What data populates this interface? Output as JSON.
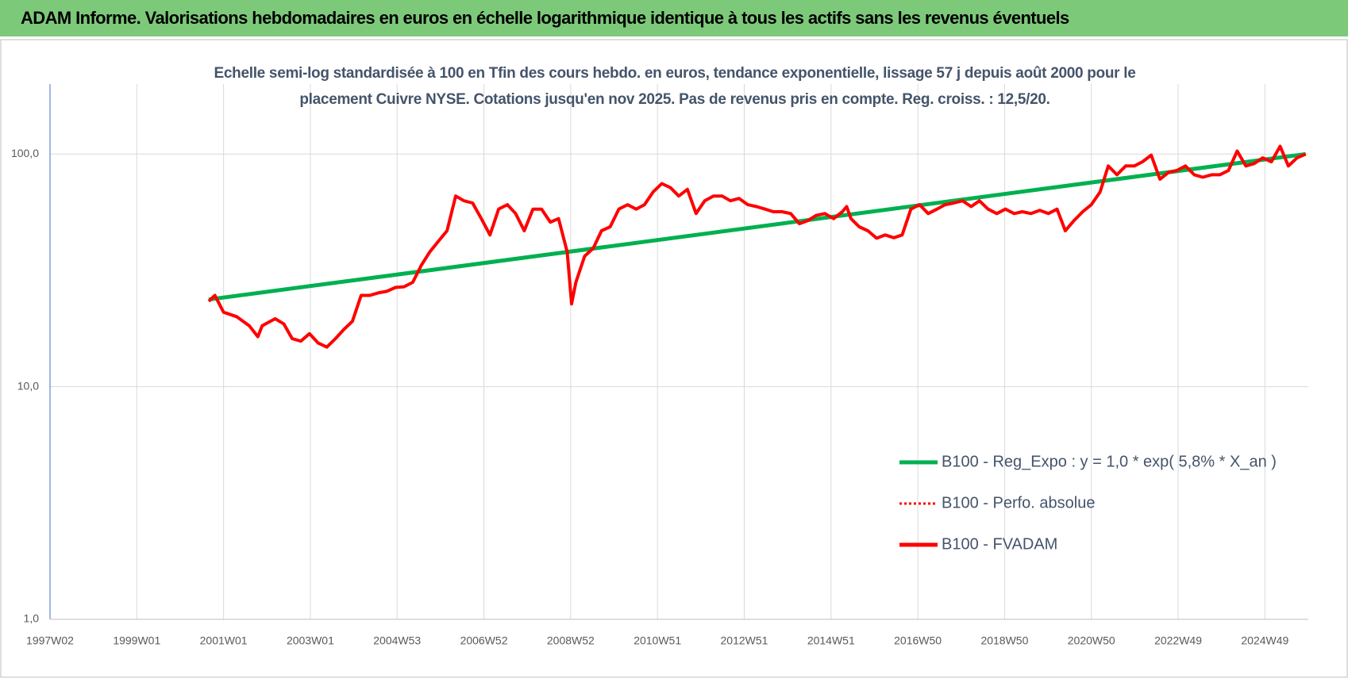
{
  "chart_data": {
    "type": "line",
    "title": "ADAM Informe. Valorisations hebdomadaires en euros en échelle logarithmique identique à tous les actifs sans les revenus éventuels",
    "subtitle": "Echelle semi-log standardisée à 100 en Tfin des cours hebdo. en euros, tendance exponentielle, lissage 57 j depuis août 2000 pour le placement Cuivre NYSE.  Cotations jusqu'en nov 2025. Pas de revenus pris en compte. Reg. croiss. : 12,5/20.",
    "log_scale": true,
    "grid": true,
    "legend": "lower right",
    "xlim": [
      1997,
      2026
    ],
    "xticks": [
      {
        "value": 1997,
        "label": "1997W02"
      },
      {
        "value": 1999,
        "label": "1999W01"
      },
      {
        "value": 2001,
        "label": "2001W01"
      },
      {
        "value": 2003,
        "label": "2003W01"
      },
      {
        "value": 2005,
        "label": "2004W53"
      },
      {
        "value": 2007,
        "label": "2006W52"
      },
      {
        "value": 2009,
        "label": "2008W52"
      },
      {
        "value": 2011,
        "label": "2010W51"
      },
      {
        "value": 2013,
        "label": "2012W51"
      },
      {
        "value": 2015,
        "label": "2014W51"
      },
      {
        "value": 2017,
        "label": "2016W50"
      },
      {
        "value": 2019,
        "label": "2018W50"
      },
      {
        "value": 2021,
        "label": "2020W50"
      },
      {
        "value": 2023,
        "label": "2022W49"
      },
      {
        "value": 2025,
        "label": "2024W49"
      }
    ],
    "ylim": [
      1,
      200
    ],
    "yticks": [
      {
        "value": 1,
        "label": "1,0"
      },
      {
        "value": 10,
        "label": "10,0"
      },
      {
        "value": 100,
        "label": "100,0"
      }
    ],
    "series": [
      {
        "name": "B100 - Reg_Expo : y = 1,0 * exp( 5,8% *  X_an )",
        "color": "#00b050",
        "line_style": "solid",
        "x": [
          2000.66,
          2025.94
        ],
        "values": [
          23.7,
          100
        ]
      },
      {
        "name": "B100 - Perfo. absolue",
        "color": "#ff0000",
        "line_style": "dotted",
        "x": [
          2000.66,
          2000.8,
          2001.0,
          2001.3,
          2001.59,
          2001.79,
          2001.89,
          2002.19,
          2002.39,
          2002.58,
          2002.78,
          2002.98,
          2003.18,
          2003.38,
          2003.58,
          2003.77,
          2003.97,
          2004.17,
          2004.37,
          2004.56,
          2004.76,
          2004.96,
          2005.16,
          2005.36,
          2005.56,
          2005.75,
          2005.95,
          2006.15,
          2006.35,
          2006.54,
          2006.74,
          2006.94,
          2007.14,
          2007.34,
          2007.54,
          2007.73,
          2007.93,
          2008.13,
          2008.33,
          2008.53,
          2008.72,
          2008.92,
          2009.02,
          2009.12,
          2009.32,
          2009.52,
          2009.71,
          2009.91,
          2010.11,
          2010.31,
          2010.51,
          2010.7,
          2010.9,
          2011.1,
          2011.3,
          2011.49,
          2011.69,
          2011.89,
          2012.09,
          2012.29,
          2012.49,
          2012.68,
          2012.88,
          2013.08,
          2013.28,
          2013.48,
          2013.67,
          2013.87,
          2014.07,
          2014.27,
          2014.47,
          2014.66,
          2014.86,
          2015.06,
          2015.26,
          2015.36,
          2015.46,
          2015.65,
          2015.85,
          2016.05,
          2016.25,
          2016.45,
          2016.64,
          2016.84,
          2017.04,
          2017.24,
          2017.44,
          2017.63,
          2017.83,
          2018.03,
          2018.23,
          2018.42,
          2018.62,
          2018.82,
          2019.02,
          2019.22,
          2019.41,
          2019.61,
          2019.81,
          2020.01,
          2020.21,
          2020.4,
          2020.6,
          2020.8,
          2021.0,
          2021.2,
          2021.39,
          2021.59,
          2021.79,
          2021.99,
          2022.18,
          2022.38,
          2022.58,
          2022.78,
          2022.97,
          2023.17,
          2023.37,
          2023.57,
          2023.77,
          2023.96,
          2024.16,
          2024.36,
          2024.56,
          2024.75,
          2024.95,
          2025.15,
          2025.35,
          2025.54,
          2025.74,
          2025.94
        ],
        "values": [
          23.3,
          24.7,
          20.9,
          20,
          18.3,
          16.4,
          18.3,
          19.6,
          18.6,
          16.1,
          15.7,
          16.9,
          15.4,
          14.8,
          16.1,
          17.6,
          19.1,
          24.7,
          24.7,
          25.3,
          25.7,
          26.7,
          26.9,
          28.1,
          33.3,
          37.9,
          42.2,
          46.8,
          66,
          63,
          61.6,
          52.8,
          44.9,
          58,
          60.6,
          55.5,
          46.8,
          58,
          58,
          51,
          52.8,
          37.9,
          22.7,
          28.1,
          36.4,
          39.4,
          46.8,
          48.7,
          58,
          60.6,
          58,
          60.6,
          68.7,
          74.7,
          71.7,
          66,
          70.5,
          55.5,
          63,
          66,
          66,
          63,
          64.5,
          60.6,
          59.5,
          58,
          56.5,
          56.5,
          55.5,
          50.2,
          51.8,
          54.5,
          55.5,
          52.8,
          56.5,
          59.5,
          52.8,
          48.7,
          46.8,
          43.5,
          44.9,
          43.7,
          44.9,
          58,
          60.6,
          55.5,
          58,
          60.6,
          61.6,
          63,
          59.5,
          63,
          58,
          55.5,
          58,
          55.5,
          56.5,
          55.5,
          57.3,
          55.5,
          58,
          46.8,
          51.8,
          56.5,
          60.6,
          68.7,
          88.9,
          81.5,
          88.9,
          88.9,
          92.7,
          99,
          78,
          83.5,
          85,
          88.9,
          81.5,
          79.5,
          81.5,
          81.5,
          85,
          103,
          88.9,
          91,
          96.3,
          92.7,
          108,
          88.9,
          96.3,
          100
        ]
      },
      {
        "name": "B100 - FVADAM",
        "color": "#ff0000",
        "line_style": "solid",
        "x": [
          2000.66,
          2000.8,
          2001.0,
          2001.3,
          2001.59,
          2001.79,
          2001.89,
          2002.19,
          2002.39,
          2002.58,
          2002.78,
          2002.98,
          2003.18,
          2003.38,
          2003.58,
          2003.77,
          2003.97,
          2004.17,
          2004.37,
          2004.56,
          2004.76,
          2004.96,
          2005.16,
          2005.36,
          2005.56,
          2005.75,
          2005.95,
          2006.15,
          2006.35,
          2006.54,
          2006.74,
          2006.94,
          2007.14,
          2007.34,
          2007.54,
          2007.73,
          2007.93,
          2008.13,
          2008.33,
          2008.53,
          2008.72,
          2008.92,
          2009.02,
          2009.12,
          2009.32,
          2009.52,
          2009.71,
          2009.91,
          2010.11,
          2010.31,
          2010.51,
          2010.7,
          2010.9,
          2011.1,
          2011.3,
          2011.49,
          2011.69,
          2011.89,
          2012.09,
          2012.29,
          2012.49,
          2012.68,
          2012.88,
          2013.08,
          2013.28,
          2013.48,
          2013.67,
          2013.87,
          2014.07,
          2014.27,
          2014.47,
          2014.66,
          2014.86,
          2015.06,
          2015.26,
          2015.36,
          2015.46,
          2015.65,
          2015.85,
          2016.05,
          2016.25,
          2016.45,
          2016.64,
          2016.84,
          2017.04,
          2017.24,
          2017.44,
          2017.63,
          2017.83,
          2018.03,
          2018.23,
          2018.42,
          2018.62,
          2018.82,
          2019.02,
          2019.22,
          2019.41,
          2019.61,
          2019.81,
          2020.01,
          2020.21,
          2020.4,
          2020.6,
          2020.8,
          2021.0,
          2021.2,
          2021.39,
          2021.59,
          2021.79,
          2021.99,
          2022.18,
          2022.38,
          2022.58,
          2022.78,
          2022.97,
          2023.17,
          2023.37,
          2023.57,
          2023.77,
          2023.96,
          2024.16,
          2024.36,
          2024.56,
          2024.75,
          2024.95,
          2025.15,
          2025.35,
          2025.54,
          2025.74,
          2025.94
        ],
        "values": [
          23.3,
          24.7,
          20.9,
          20,
          18.3,
          16.4,
          18.3,
          19.6,
          18.6,
          16.1,
          15.7,
          16.9,
          15.4,
          14.8,
          16.1,
          17.6,
          19.1,
          24.7,
          24.7,
          25.3,
          25.7,
          26.7,
          26.9,
          28.1,
          33.3,
          37.9,
          42.2,
          46.8,
          66,
          63,
          61.6,
          52.8,
          44.9,
          58,
          60.6,
          55.5,
          46.8,
          58,
          58,
          51,
          52.8,
          37.9,
          22.7,
          28.1,
          36.4,
          39.4,
          46.8,
          48.7,
          58,
          60.6,
          58,
          60.6,
          68.7,
          74.7,
          71.7,
          66,
          70.5,
          55.5,
          63,
          66,
          66,
          63,
          64.5,
          60.6,
          59.5,
          58,
          56.5,
          56.5,
          55.5,
          50.2,
          51.8,
          54.5,
          55.5,
          52.8,
          56.5,
          59.5,
          52.8,
          48.7,
          46.8,
          43.5,
          44.9,
          43.7,
          44.9,
          58,
          60.6,
          55.5,
          58,
          60.6,
          61.6,
          63,
          59.5,
          63,
          58,
          55.5,
          58,
          55.5,
          56.5,
          55.5,
          57.3,
          55.5,
          58,
          46.8,
          51.8,
          56.5,
          60.6,
          68.7,
          88.9,
          81.5,
          88.9,
          88.9,
          92.7,
          99,
          78,
          83.5,
          85,
          88.9,
          81.5,
          79.5,
          81.5,
          81.5,
          85,
          103,
          88.9,
          91,
          96.3,
          92.7,
          108,
          88.9,
          96.3,
          100
        ]
      }
    ]
  }
}
